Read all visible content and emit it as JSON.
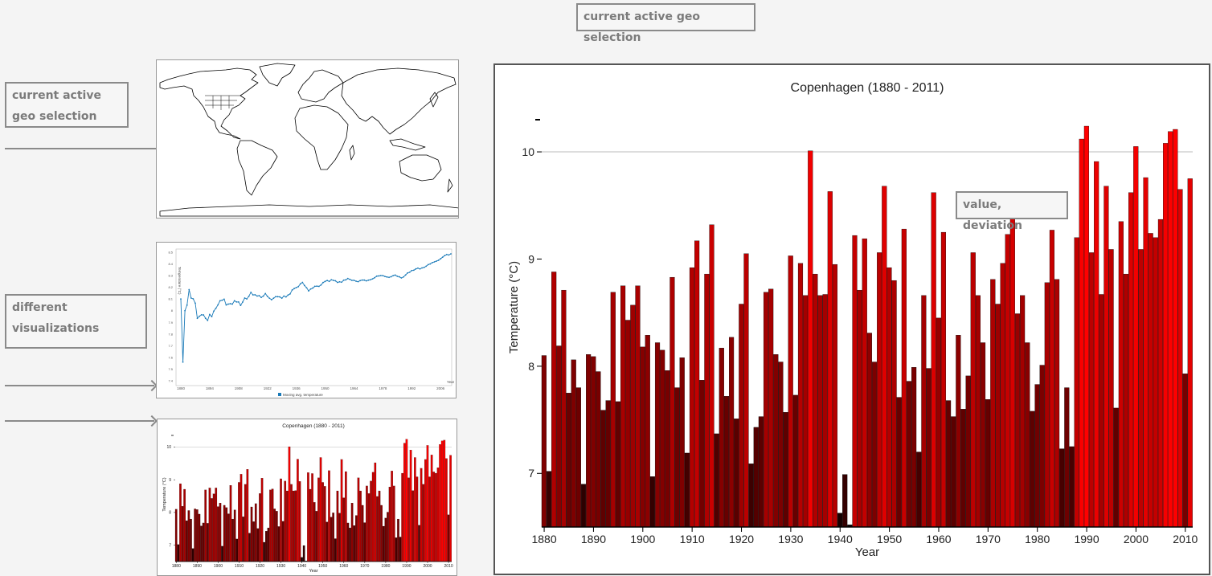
{
  "top_label": "current active geo selection",
  "callouts": {
    "geo": "current active geo selection",
    "visualizations": "different visualizations",
    "value_deviation": "value, deviation"
  },
  "line_preview": {
    "ylabel": "Temperature (°C)",
    "xlabel": "Year",
    "legend": "Moving avg. temperature",
    "accent": "#1a7ab8",
    "yticks": [
      "7.4",
      "7.5",
      "7.6",
      "7.7",
      "7.8",
      "7.9",
      "8",
      "8.1",
      "8.2",
      "8.3",
      "8.4",
      "8.5"
    ],
    "xticks": [
      "1880",
      "1894",
      "1908",
      "1922",
      "1936",
      "1950",
      "1964",
      "1978",
      "1992",
      "2006"
    ]
  },
  "chart_data": {
    "type": "bar",
    "title": "Copenhagen (1880 - 2011)",
    "xlabel": "Year",
    "ylabel": "Temperature (°C)",
    "ylim": [
      6.5,
      10.6
    ],
    "x_ticks": [
      "1880",
      "1890",
      "1900",
      "1910",
      "1920",
      "1930",
      "1940",
      "1950",
      "1960",
      "1970",
      "1980",
      "1990",
      "2000",
      "2010"
    ],
    "y_ticks": [
      "7",
      "8",
      "9",
      "10"
    ],
    "grid": "y at 10",
    "color_scale": [
      "#0a0000",
      "#ff0000"
    ],
    "years": [
      1880,
      1881,
      1882,
      1883,
      1884,
      1885,
      1886,
      1887,
      1888,
      1889,
      1890,
      1891,
      1892,
      1893,
      1894,
      1895,
      1896,
      1897,
      1898,
      1899,
      1900,
      1901,
      1902,
      1903,
      1904,
      1905,
      1906,
      1907,
      1908,
      1909,
      1910,
      1911,
      1912,
      1913,
      1914,
      1915,
      1916,
      1917,
      1918,
      1919,
      1920,
      1921,
      1922,
      1923,
      1924,
      1925,
      1926,
      1927,
      1928,
      1929,
      1930,
      1931,
      1932,
      1933,
      1934,
      1935,
      1936,
      1937,
      1938,
      1939,
      1940,
      1941,
      1942,
      1943,
      1944,
      1945,
      1946,
      1947,
      1948,
      1949,
      1950,
      1951,
      1952,
      1953,
      1954,
      1955,
      1956,
      1957,
      1958,
      1959,
      1960,
      1961,
      1962,
      1963,
      1964,
      1965,
      1966,
      1967,
      1968,
      1969,
      1970,
      1971,
      1972,
      1973,
      1974,
      1975,
      1976,
      1977,
      1978,
      1979,
      1980,
      1981,
      1982,
      1983,
      1984,
      1985,
      1986,
      1987,
      1988,
      1989,
      1990,
      1991,
      1992,
      1993,
      1994,
      1995,
      1996,
      1997,
      1998,
      1999,
      2000,
      2001,
      2002,
      2003,
      2004,
      2005,
      2006,
      2007,
      2008,
      2009,
      2010,
      2011
    ],
    "values": [
      8.1,
      7.02,
      8.88,
      8.19,
      8.71,
      7.75,
      8.06,
      7.8,
      6.9,
      8.11,
      8.09,
      7.95,
      7.59,
      7.68,
      8.69,
      7.67,
      8.75,
      8.43,
      8.57,
      8.75,
      8.18,
      8.29,
      6.97,
      8.22,
      8.15,
      7.96,
      8.83,
      7.8,
      8.08,
      7.19,
      8.92,
      9.17,
      7.87,
      8.86,
      9.32,
      7.37,
      8.17,
      7.72,
      8.27,
      7.51,
      8.58,
      9.05,
      7.09,
      7.43,
      7.53,
      8.69,
      8.72,
      8.11,
      8.04,
      7.57,
      9.03,
      7.73,
      8.96,
      8.66,
      10.01,
      8.86,
      8.66,
      8.67,
      9.63,
      8.95,
      6.63,
      6.99,
      6.52,
      9.22,
      8.71,
      9.19,
      8.31,
      8.04,
      9.06,
      9.68,
      8.92,
      8.8,
      7.71,
      9.28,
      7.86,
      7.99,
      7.2,
      8.66,
      7.98,
      9.62,
      8.45,
      9.25,
      7.68,
      7.53,
      8.29,
      7.6,
      7.91,
      9.06,
      8.66,
      8.22,
      7.69,
      8.81,
      8.58,
      8.96,
      9.23,
      9.52,
      8.49,
      8.66,
      8.22,
      7.58,
      7.83,
      8.01,
      8.78,
      9.27,
      8.81,
      7.23,
      7.8,
      7.25,
      9.2,
      10.12,
      10.24,
      9.06,
      9.91,
      8.67,
      9.68,
      9.09,
      7.61,
      9.35,
      8.86,
      9.62,
      10.05,
      9.09,
      9.76,
      9.24,
      9.2,
      9.37,
      10.08,
      10.19,
      10.21,
      9.65,
      7.93,
      9.75
    ]
  }
}
